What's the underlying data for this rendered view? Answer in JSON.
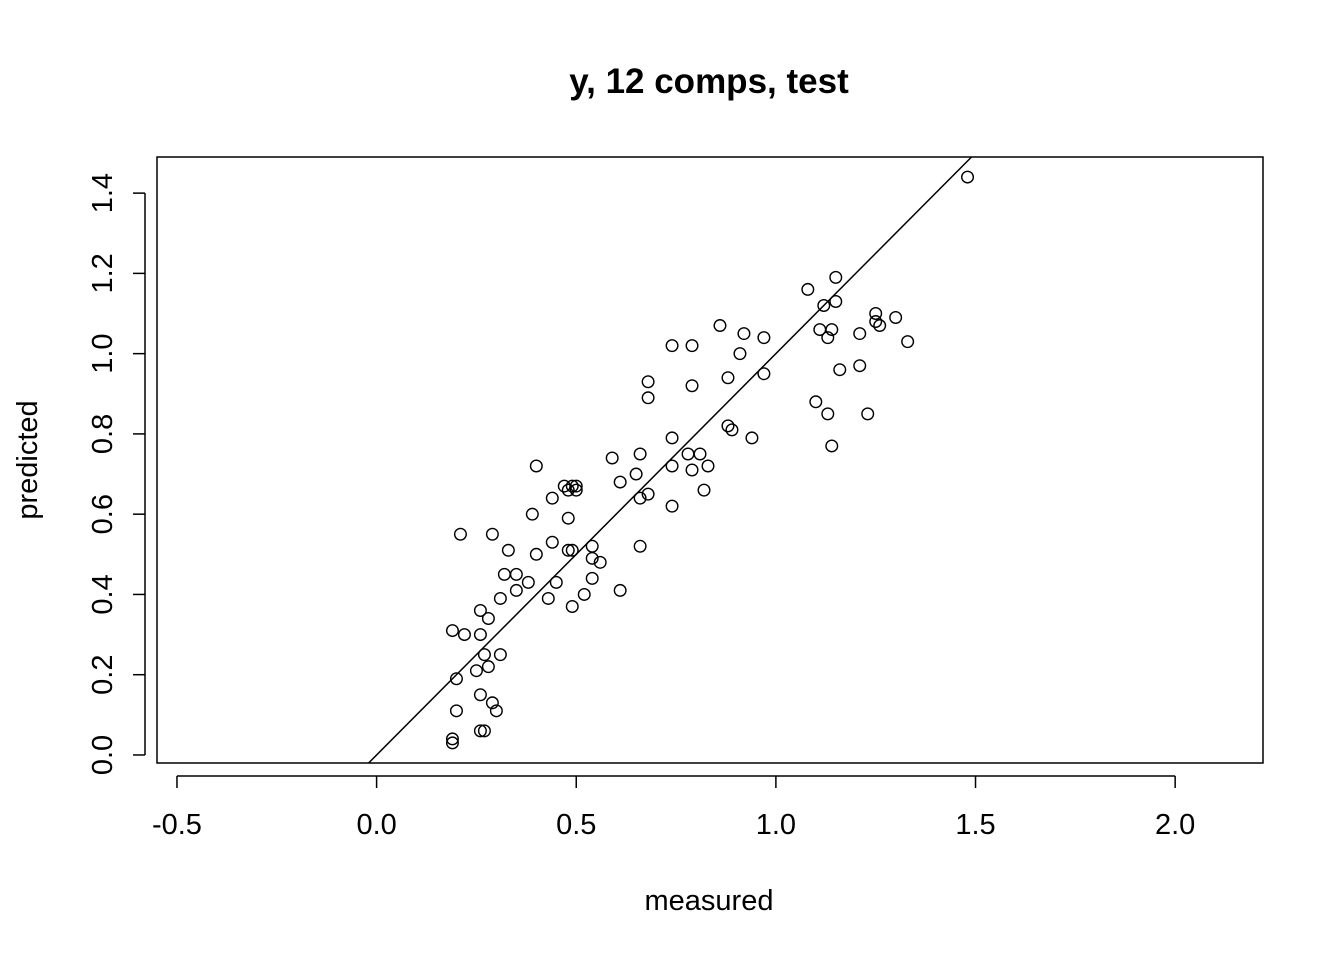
{
  "chart_data": {
    "type": "scatter",
    "title": "y, 12 comps, test",
    "xlabel": "measured",
    "ylabel": "predicted",
    "xlim": [
      -0.55,
      2.22
    ],
    "ylim": [
      -0.02,
      1.49
    ],
    "xticks": [
      -0.5,
      0.0,
      0.5,
      1.0,
      1.5,
      2.0
    ],
    "xtick_labels": [
      "-0.5",
      "0.0",
      "0.5",
      "1.0",
      "1.5",
      "2.0"
    ],
    "yticks": [
      0.0,
      0.2,
      0.4,
      0.6,
      0.8,
      1.0,
      1.2,
      1.4
    ],
    "ytick_labels": [
      "0.0",
      "0.2",
      "0.4",
      "0.6",
      "0.8",
      "1.0",
      "1.2",
      "1.4"
    ],
    "grid": false,
    "legend": "none",
    "reference_line": {
      "slope": 1,
      "intercept": 0
    },
    "points": [
      [
        1.48,
        1.44
      ],
      [
        1.15,
        1.19
      ],
      [
        1.08,
        1.16
      ],
      [
        1.12,
        1.12
      ],
      [
        1.15,
        1.13
      ],
      [
        1.25,
        1.1
      ],
      [
        1.3,
        1.09
      ],
      [
        1.25,
        1.08
      ],
      [
        1.26,
        1.07
      ],
      [
        1.11,
        1.06
      ],
      [
        1.14,
        1.06
      ],
      [
        1.13,
        1.04
      ],
      [
        1.21,
        1.05
      ],
      [
        1.33,
        1.03
      ],
      [
        1.21,
        0.97
      ],
      [
        1.16,
        0.96
      ],
      [
        1.1,
        0.88
      ],
      [
        1.13,
        0.85
      ],
      [
        1.23,
        0.85
      ],
      [
        1.14,
        0.77
      ],
      [
        0.86,
        1.07
      ],
      [
        0.92,
        1.05
      ],
      [
        0.97,
        1.04
      ],
      [
        0.74,
        1.02
      ],
      [
        0.79,
        1.02
      ],
      [
        0.91,
        1.0
      ],
      [
        0.97,
        0.95
      ],
      [
        0.88,
        0.94
      ],
      [
        0.68,
        0.93
      ],
      [
        0.79,
        0.92
      ],
      [
        0.68,
        0.89
      ],
      [
        0.88,
        0.82
      ],
      [
        0.89,
        0.81
      ],
      [
        0.94,
        0.79
      ],
      [
        0.74,
        0.79
      ],
      [
        0.78,
        0.75
      ],
      [
        0.81,
        0.75
      ],
      [
        0.66,
        0.75
      ],
      [
        0.59,
        0.74
      ],
      [
        0.74,
        0.72
      ],
      [
        0.83,
        0.72
      ],
      [
        0.79,
        0.71
      ],
      [
        0.65,
        0.7
      ],
      [
        0.61,
        0.68
      ],
      [
        0.82,
        0.66
      ],
      [
        0.68,
        0.65
      ],
      [
        0.66,
        0.64
      ],
      [
        0.74,
        0.62
      ],
      [
        0.66,
        0.52
      ],
      [
        0.4,
        0.72
      ],
      [
        0.47,
        0.67
      ],
      [
        0.49,
        0.67
      ],
      [
        0.5,
        0.67
      ],
      [
        0.48,
        0.66
      ],
      [
        0.5,
        0.66
      ],
      [
        0.44,
        0.64
      ],
      [
        0.39,
        0.6
      ],
      [
        0.48,
        0.59
      ],
      [
        0.44,
        0.53
      ],
      [
        0.54,
        0.52
      ],
      [
        0.48,
        0.51
      ],
      [
        0.49,
        0.51
      ],
      [
        0.4,
        0.5
      ],
      [
        0.33,
        0.51
      ],
      [
        0.54,
        0.49
      ],
      [
        0.56,
        0.48
      ],
      [
        0.29,
        0.55
      ],
      [
        0.21,
        0.55
      ],
      [
        0.32,
        0.45
      ],
      [
        0.35,
        0.45
      ],
      [
        0.54,
        0.44
      ],
      [
        0.38,
        0.43
      ],
      [
        0.45,
        0.43
      ],
      [
        0.35,
        0.41
      ],
      [
        0.61,
        0.41
      ],
      [
        0.31,
        0.39
      ],
      [
        0.43,
        0.39
      ],
      [
        0.52,
        0.4
      ],
      [
        0.49,
        0.37
      ],
      [
        0.26,
        0.36
      ],
      [
        0.28,
        0.34
      ],
      [
        0.19,
        0.31
      ],
      [
        0.22,
        0.3
      ],
      [
        0.26,
        0.3
      ],
      [
        0.27,
        0.25
      ],
      [
        0.31,
        0.25
      ],
      [
        0.25,
        0.21
      ],
      [
        0.28,
        0.22
      ],
      [
        0.2,
        0.19
      ],
      [
        0.26,
        0.15
      ],
      [
        0.29,
        0.13
      ],
      [
        0.3,
        0.11
      ],
      [
        0.2,
        0.11
      ],
      [
        0.26,
        0.06
      ],
      [
        0.27,
        0.06
      ],
      [
        0.19,
        0.04
      ],
      [
        0.19,
        0.03
      ]
    ]
  }
}
